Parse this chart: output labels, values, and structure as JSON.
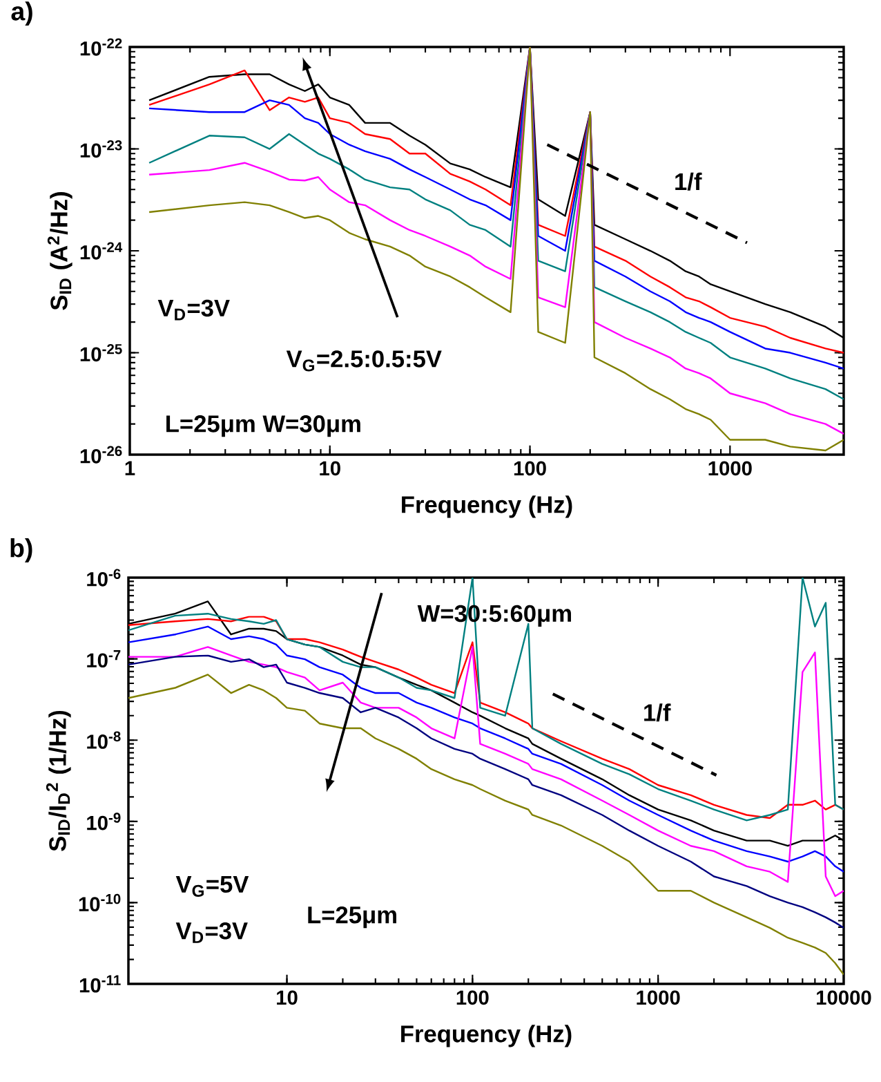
{
  "chart_data": [
    {
      "type": "line",
      "title": "a)",
      "xlabel": "Frequency (Hz)",
      "ylabel": "S$_{ID}$ (A$^{2}$/Hz)",
      "log": "xy",
      "xlim": [
        1,
        3700
      ],
      "ylim": [
        1e-26,
        1e-22
      ],
      "xticks": [
        1,
        10,
        100,
        1000
      ],
      "yticks": [
        {
          "value": 1e-26,
          "label": "10$^{-26}$"
        },
        {
          "value": 1e-25,
          "label": "10$^{-25}$"
        },
        {
          "value": 1e-24,
          "label": "10$^{-24}$"
        },
        {
          "value": 1e-23,
          "label": "10$^{-23}$"
        },
        {
          "value": 1e-22,
          "label": "10$^{-22}$"
        }
      ],
      "x": [
        1.25,
        2.5,
        3.75,
        5,
        6.25,
        7.5,
        8.75,
        10,
        12.5,
        15,
        20,
        25,
        30,
        40,
        50,
        60,
        80,
        100,
        110,
        150,
        200,
        210,
        300,
        400,
        500,
        600,
        700,
        800,
        1000,
        1500,
        2000,
        3000,
        3700
      ],
      "series": [
        {
          "color": "#000000",
          "values": [
            3e-23,
            5.1e-23,
            5.4e-23,
            5.4e-23,
            4.3e-23,
            3.7e-23,
            4.3e-23,
            3.2e-23,
            2.7e-23,
            1.8e-23,
            1.8e-23,
            1.35e-23,
            1.1e-23,
            7.2e-24,
            6.3e-24,
            5.3e-24,
            4.2e-24,
            1e-22,
            3.2e-24,
            2.2e-24,
            2.3e-23,
            1.8e-24,
            1.3e-24,
            1e-24,
            8e-25,
            6.3e-25,
            5.6e-25,
            4.7e-25,
            4e-25,
            3e-25,
            2.5e-25,
            1.8e-25,
            1.4e-25
          ]
        },
        {
          "color": "#ff0000",
          "values": [
            2.7e-23,
            4.3e-23,
            5.9e-23,
            2.4e-23,
            3.2e-23,
            2.9e-23,
            3.2e-23,
            2e-23,
            1.8e-23,
            1.4e-23,
            1.25e-23,
            9e-24,
            9e-24,
            5.7e-24,
            4.8e-24,
            4e-24,
            2.8e-24,
            1e-22,
            1.8e-24,
            1.4e-24,
            2.3e-23,
            1.1e-24,
            8e-25,
            5.6e-25,
            4.4e-25,
            3.5e-25,
            3.2e-25,
            2.8e-25,
            2.2e-25,
            1.8e-25,
            1.4e-25,
            1.1e-25,
            1e-25
          ]
        },
        {
          "color": "#0000ff",
          "values": [
            2.5e-23,
            2.3e-23,
            2.3e-23,
            3e-23,
            2.7e-23,
            2e-23,
            1.8e-23,
            1.4e-23,
            1.1e-23,
            9.5e-24,
            8e-24,
            6.3e-24,
            5.3e-24,
            4e-24,
            3.2e-24,
            2.8e-24,
            2e-24,
            1e-22,
            1.4e-24,
            1e-24,
            2.3e-23,
            8e-25,
            5.6e-25,
            4e-25,
            3.2e-25,
            2.5e-25,
            2.2e-25,
            2e-25,
            1.6e-25,
            1.1e-25,
            1e-25,
            8e-26,
            7e-26
          ]
        },
        {
          "color": "#008080",
          "values": [
            7.3e-24,
            1.35e-23,
            1.3e-23,
            1e-23,
            1.4e-23,
            1.1e-23,
            9e-24,
            8e-24,
            6.3e-24,
            5e-24,
            4.2e-24,
            4e-24,
            3.2e-24,
            2.5e-24,
            1.8e-24,
            1.6e-24,
            1.1e-24,
            1e-22,
            8e-25,
            6.3e-25,
            2.3e-23,
            4.4e-25,
            3.2e-25,
            2.5e-25,
            2e-25,
            1.6e-25,
            1.4e-25,
            1.25e-25,
            9e-26,
            7e-26,
            5.6e-26,
            4.4e-26,
            3.5e-26
          ]
        },
        {
          "color": "#ff00ff",
          "values": [
            5.6e-24,
            6.2e-24,
            7.3e-24,
            6e-24,
            5e-24,
            4.9e-24,
            5.3e-24,
            4e-24,
            3e-24,
            2.8e-24,
            2e-24,
            1.6e-24,
            1.4e-24,
            1.1e-24,
            9e-25,
            7e-25,
            5.3e-25,
            1e-22,
            3.5e-25,
            2.8e-25,
            2.3e-23,
            2e-25,
            1.4e-25,
            1.1e-25,
            9e-26,
            7e-26,
            6.3e-26,
            5.6e-26,
            4e-26,
            3.2e-26,
            2.5e-26,
            2e-26,
            1.6e-26
          ]
        },
        {
          "color": "#808000",
          "values": [
            2.4e-24,
            2.8e-24,
            3e-24,
            2.8e-24,
            2.4e-24,
            2.1e-24,
            2.2e-24,
            2e-24,
            1.5e-24,
            1.3e-24,
            1.1e-24,
            9e-25,
            7e-25,
            5.6e-25,
            4.4e-25,
            3.5e-25,
            2.5e-25,
            1e-22,
            1.6e-25,
            1.25e-25,
            2.3e-23,
            9e-26,
            6.3e-26,
            4.4e-26,
            3.5e-26,
            2.8e-26,
            2.5e-26,
            2.2e-26,
            1.4e-26,
            1.4e-26,
            1.2e-26,
            1.1e-26,
            1.4e-26
          ]
        },
        {
          "type": "line",
          "line_style": "dashed",
          "color": "#000000",
          "x": [
            122,
            1216
          ],
          "values": [
            1.1e-23,
            1.2e-24
          ]
        }
      ],
      "annotations": [
        "V$_{D}$=3V",
        "V$_{G}$=2.5:0.5:5V",
        "L=25μm W=30μm",
        "1/f"
      ]
    },
    {
      "type": "line",
      "title": "b)",
      "xlabel": "Frequency (Hz)",
      "ylabel": "S$_{ID}$/I$_{D}$$^{2}$ (1/Hz)",
      "log": "xy",
      "xlim": [
        1.4,
        10000
      ],
      "ylim": [
        1e-11,
        1e-06
      ],
      "xticks": [
        10,
        100,
        1000,
        10000
      ],
      "yticks": [
        {
          "value": 1e-11,
          "label": "10$^{-11}$"
        },
        {
          "value": 1e-10,
          "label": "10$^{-10}$"
        },
        {
          "value": 1e-09,
          "label": "10$^{-9}$"
        },
        {
          "value": 1e-08,
          "label": "10$^{-8}$"
        },
        {
          "value": 1e-07,
          "label": "10$^{-7}$"
        },
        {
          "value": 1e-06,
          "label": "10$^{-6}$"
        }
      ],
      "x": [
        1.4,
        2.5,
        3.75,
        5,
        6.25,
        7.5,
        8.75,
        10,
        12.5,
        15,
        20,
        25,
        30,
        40,
        50,
        60,
        80,
        100,
        110,
        150,
        200,
        210,
        300,
        500,
        700,
        1000,
        1500,
        2000,
        3000,
        4000,
        5000,
        6000,
        7000,
        8000,
        9000,
        10000
      ],
      "series": [
        {
          "color": "#000000",
          "values": [
            2.7e-07,
            3.6e-07,
            5.1e-07,
            2e-07,
            2.35e-07,
            2.35e-07,
            2.2e-07,
            1.75e-07,
            1.5e-07,
            1.4e-07,
            1.1e-07,
            8.5e-08,
            7.9e-08,
            5.9e-08,
            4.8e-08,
            4.1e-08,
            2.9e-08,
            2.2e-08,
            2e-08,
            1.4e-08,
            1.05e-08,
            9e-09,
            5.9e-09,
            3.3e-09,
            2.1e-09,
            1.4e-09,
            1.03e-09,
            7.7e-10,
            5.8e-10,
            5.8e-10,
            5e-10,
            5.8e-10,
            5.8e-10,
            5.8e-10,
            6.7e-10,
            5.8e-10
          ]
        },
        {
          "color": "#ff0000",
          "values": [
            2.6e-07,
            2.9e-07,
            3.1e-07,
            2.9e-07,
            3.3e-07,
            3.3e-07,
            2.9e-07,
            1.75e-07,
            1.75e-07,
            1.6e-07,
            1.3e-07,
            1.06e-07,
            9.2e-08,
            7.4e-08,
            5.9e-08,
            4.8e-08,
            3.8e-08,
            1.6e-07,
            2.9e-08,
            2.2e-08,
            1.6e-08,
            1.4e-08,
            9.7e-09,
            5.9e-09,
            4.4e-09,
            2.8e-09,
            2.1e-09,
            1.6e-09,
            1.2e-09,
            1.1e-09,
            1.6e-09,
            1.6e-09,
            1.8e-09,
            1.4e-09,
            1.6e-09,
            1.4e-09
          ]
        },
        {
          "color": "#0000ff",
          "values": [
            1.6e-07,
            2e-07,
            2.5e-07,
            1.75e-07,
            1.9e-07,
            1.75e-07,
            1.5e-07,
            1.1e-07,
            9.9e-08,
            7.9e-08,
            6.4e-08,
            4.4e-08,
            3.8e-08,
            3.8e-08,
            2.9e-08,
            2.5e-08,
            1.9e-08,
            1.6e-08,
            1.4e-08,
            1.05e-08,
            7.8e-09,
            6.8e-09,
            5.1e-09,
            2.8e-09,
            1.8e-09,
            1.2e-09,
            7.7e-10,
            5.8e-10,
            4.3e-10,
            3.7e-10,
            3.2e-10,
            3.7e-10,
            4.3e-10,
            3.7e-10,
            2.8e-10,
            2.4e-10
          ]
        },
        {
          "color": "#ff00ff",
          "values": [
            1.06e-07,
            1.06e-07,
            1.4e-07,
            1.1e-07,
            9.2e-08,
            8.5e-08,
            7.9e-08,
            6.9e-08,
            5.9e-08,
            4.1e-08,
            5.1e-08,
            2.9e-08,
            2.5e-08,
            2.5e-08,
            1.9e-08,
            1.4e-08,
            1.05e-08,
            1.4e-07,
            9e-09,
            6.8e-09,
            5.1e-09,
            4.4e-09,
            3.3e-09,
            1.8e-09,
            1.2e-09,
            7.7e-10,
            5e-10,
            4.3e-10,
            2.8e-10,
            2.4e-10,
            1.8e-10,
            6.9e-08,
            1.2e-07,
            2.1e-10,
            1.2e-10,
            1.4e-10
          ]
        },
        {
          "color": "#000080",
          "values": [
            8.5e-08,
            1.06e-07,
            1.1e-07,
            9.2e-08,
            9.9e-08,
            7.9e-08,
            8.5e-08,
            5.1e-08,
            4.4e-08,
            3.8e-08,
            3.3e-08,
            2.2e-08,
            2.5e-08,
            1.9e-08,
            1.4e-08,
            1.05e-08,
            7.8e-09,
            6.8e-09,
            5.9e-09,
            4.4e-09,
            3.3e-09,
            2.8e-09,
            2.1e-09,
            1.2e-09,
            7.7e-10,
            5e-10,
            3.2e-10,
            2.1e-10,
            1.6e-10,
            1.2e-10,
            1e-10,
            8.8e-11,
            7.6e-11,
            6.6e-11,
            5.7e-11,
            4.9e-11
          ]
        },
        {
          "color": "#808000",
          "values": [
            3.3e-08,
            4.4e-08,
            6.4e-08,
            3.8e-08,
            4.8e-08,
            4.1e-08,
            3.3e-08,
            2.5e-08,
            2.3e-08,
            1.6e-08,
            1.4e-08,
            1.4e-08,
            1.05e-08,
            7.8e-09,
            5.9e-09,
            4.4e-09,
            3.3e-09,
            2.8e-09,
            2.5e-09,
            1.8e-09,
            1.4e-09,
            1.2e-09,
            8.9e-10,
            5e-10,
            3.2e-10,
            1.4e-10,
            1.4e-10,
            1e-10,
            6.6e-11,
            4.9e-11,
            3.7e-11,
            3.2e-11,
            2.8e-11,
            2.4e-11,
            1.8e-11,
            1.3e-11
          ]
        },
        {
          "color": "#008080",
          "values": [
            2.25e-07,
            3.4e-07,
            3.6e-07,
            3.1e-07,
            2.9e-07,
            2.7e-07,
            3e-07,
            1.75e-07,
            1.5e-07,
            1.4e-07,
            9.2e-08,
            7.9e-08,
            7.9e-08,
            5.9e-08,
            4.4e-08,
            4.1e-08,
            3.3e-08,
            1e-06,
            2.5e-08,
            2e-08,
            2.7e-07,
            1.4e-08,
            9e-09,
            5.1e-09,
            3.8e-09,
            2.5e-09,
            1.8e-09,
            1.4e-09,
            1.03e-09,
            1.2e-09,
            1.4e-09,
            1e-06,
            2.5e-07,
            4.9e-07,
            1.6e-09,
            1.4e-09
          ]
        },
        {
          "type": "line",
          "line_style": "dashed",
          "color": "#000000",
          "x": [
            271,
            2060
          ],
          "values": [
            3.7e-08,
            3.7e-09
          ]
        }
      ],
      "annotations": [
        "W=30:5:60μm",
        "V$_{G}$=5V",
        "V$_{D}$=3V",
        "L=25μm",
        "1/f"
      ]
    }
  ]
}
